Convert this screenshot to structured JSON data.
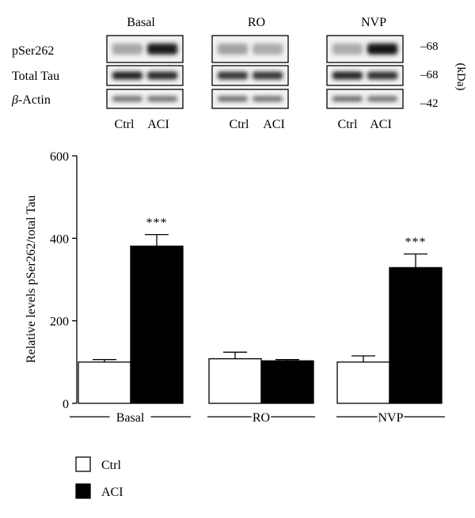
{
  "blot": {
    "panel_titles": [
      "Basal",
      "RO",
      "NVP"
    ],
    "row_labels": [
      "pSer262",
      "Total Tau",
      "-Actin"
    ],
    "row_label_prefix": "β",
    "lane_labels": [
      "Ctrl",
      "ACI"
    ],
    "kda_markers": [
      "68",
      "68",
      "42"
    ],
    "kda_unit": "(kDa)",
    "band_intensity": [
      [
        [
          0.3,
          0.92
        ],
        [
          0.32,
          0.28
        ],
        [
          0.28,
          0.96
        ]
      ],
      [
        [
          0.9,
          0.85
        ],
        [
          0.8,
          0.8
        ],
        [
          0.88,
          0.82
        ]
      ],
      [
        [
          0.55,
          0.55
        ],
        [
          0.58,
          0.55
        ],
        [
          0.58,
          0.55
        ]
      ]
    ]
  },
  "chart_data": {
    "type": "bar",
    "ylabel": "Relative levels pSer262/total Tau",
    "ylim": [
      0,
      600
    ],
    "yticks": [
      0,
      200,
      400,
      600
    ],
    "ytick_labels": [
      "0",
      "200",
      "400",
      "600"
    ],
    "categories": [
      "Basal",
      "RO",
      "NVP"
    ],
    "series": [
      {
        "name": "Ctrl",
        "values": [
          100,
          108,
          100
        ],
        "errors": [
          6,
          16,
          15
        ],
        "color": "#ffffff"
      },
      {
        "name": "ACI",
        "values": [
          381,
          103,
          329
        ],
        "errors": [
          28,
          3,
          33
        ],
        "color": "#000000"
      }
    ],
    "annotations": [
      {
        "category": "Basal",
        "series": "ACI",
        "text": "***"
      },
      {
        "category": "NVP",
        "series": "ACI",
        "text": "***"
      }
    ],
    "legend": {
      "position": "bottom-left"
    },
    "grid": false
  }
}
